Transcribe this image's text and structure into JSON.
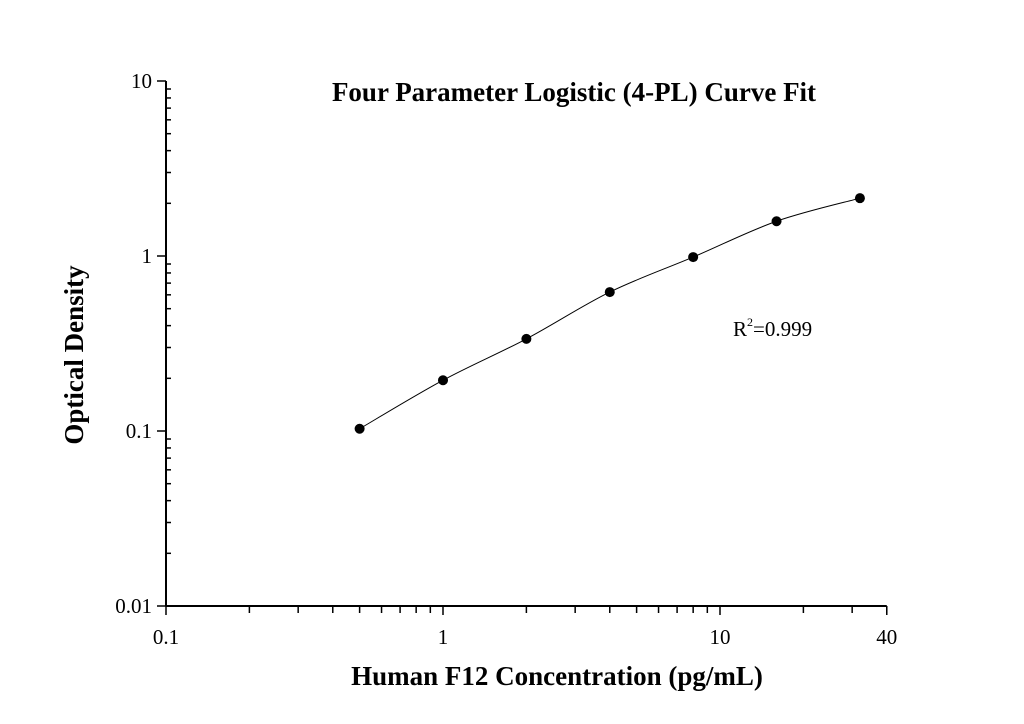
{
  "chart_data": {
    "type": "scatter",
    "title": "Four Parameter Logistic (4-PL) Curve Fit",
    "xlabel": "Human F12 Concentration (pg/mL)",
    "ylabel": "Optical Density",
    "xscale": "log",
    "yscale": "log",
    "xlim": [
      0.1,
      40
    ],
    "ylim": [
      0.01,
      10
    ],
    "xticks": [
      "0.1",
      "1",
      "10",
      "40"
    ],
    "yticks": [
      "0.01",
      "0.1",
      "1",
      "10"
    ],
    "grid": false,
    "annotation": {
      "base": "R",
      "sup": "2",
      "rest": "=0.999"
    },
    "series": [
      {
        "x": [
          0.5,
          1,
          2,
          4,
          8,
          16,
          32
        ],
        "y": [
          0.103,
          0.195,
          0.336,
          0.622,
          0.986,
          1.58,
          2.14
        ],
        "fit": "4-PL curve",
        "marker_color": "#000000",
        "line_color": "#000000"
      }
    ]
  }
}
